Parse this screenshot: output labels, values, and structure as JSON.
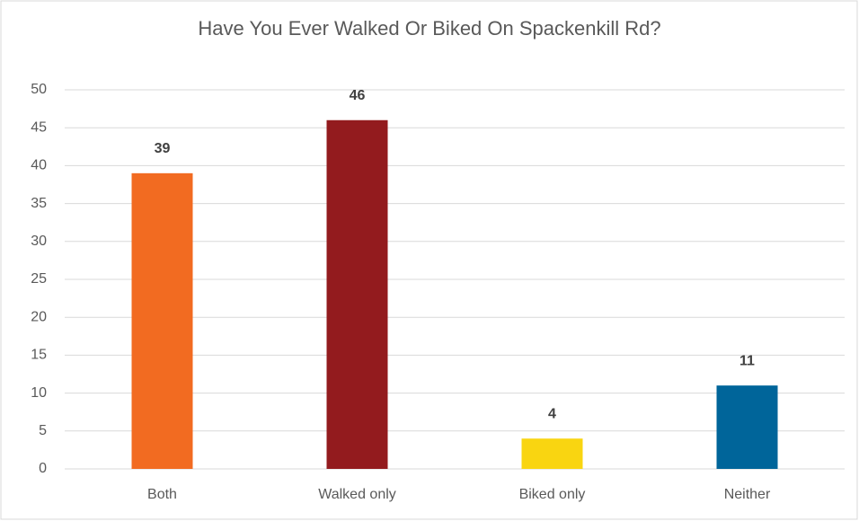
{
  "chart_data": {
    "type": "bar",
    "title": "Have You Ever Walked Or Biked On Spackenkill Rd?",
    "categories": [
      "Both",
      "Walked only",
      "Biked only",
      "Neither"
    ],
    "values": [
      39,
      46,
      4,
      11
    ],
    "colors": [
      "#f26b21",
      "#931b1e",
      "#f9d511",
      "#00659a"
    ],
    "ylim": [
      0,
      50
    ],
    "yticks": [
      0,
      5,
      10,
      15,
      20,
      25,
      30,
      35,
      40,
      45,
      50
    ],
    "grid": true,
    "data_labels": true
  }
}
